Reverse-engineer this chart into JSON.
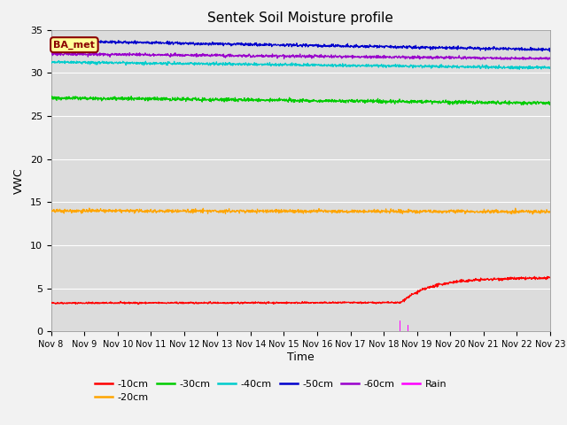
{
  "title": "Sentek Soil Moisture profile",
  "xlabel": "Time",
  "ylabel": "VWC",
  "annotation_text": "BA_met",
  "annotation_bg": "#FFFF99",
  "annotation_border": "#8B0000",
  "ylim": [
    0,
    35
  ],
  "x_tick_labels": [
    "Nov 8",
    "Nov 9",
    "Nov 10",
    "Nov 11",
    "Nov 12",
    "Nov 13",
    "Nov 14",
    "Nov 15",
    "Nov 16",
    "Nov 17",
    "Nov 18",
    "Nov 19",
    "Nov 20",
    "Nov 21",
    "Nov 22",
    "Nov 23"
  ],
  "fig_bg": "#f2f2f2",
  "plot_bg": "#dcdcdc",
  "grid_color": "#ffffff",
  "series": {
    "d10": {
      "color": "#FF0000",
      "label": "-10cm"
    },
    "d20": {
      "color": "#FFA500",
      "label": "-20cm"
    },
    "d30": {
      "color": "#00CC00",
      "label": "-30cm"
    },
    "d40": {
      "color": "#00CCCC",
      "label": "-40cm"
    },
    "d50": {
      "color": "#0000CC",
      "label": "-50cm"
    },
    "d60": {
      "color": "#9900CC",
      "label": "-60cm"
    }
  },
  "rain_color": "#FF00FF",
  "rain_label": "Rain"
}
